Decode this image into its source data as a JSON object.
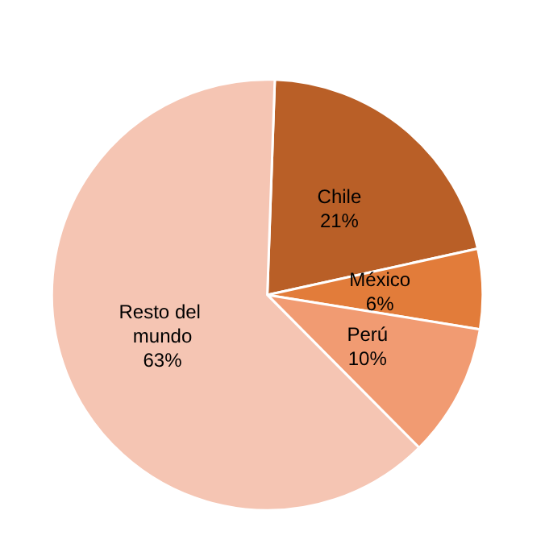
{
  "chart_data": {
    "type": "pie",
    "categories": [
      "Chile",
      "México",
      "Perú",
      "Resto del mundo"
    ],
    "values": [
      21,
      6,
      10,
      63
    ],
    "colors": [
      "#b95f27",
      "#e27c3a",
      "#f19b72",
      "#f5c5b3"
    ],
    "value_labels": [
      "21%",
      "6%",
      "10%",
      "63%"
    ]
  }
}
